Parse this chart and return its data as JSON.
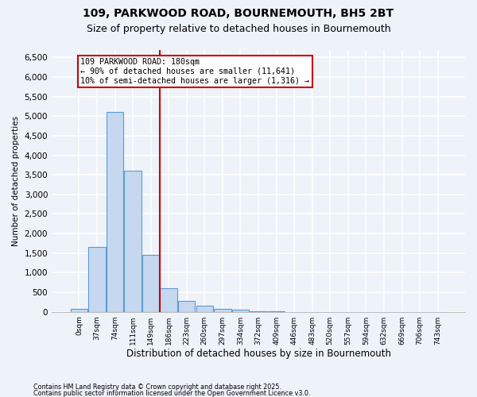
{
  "title1": "109, PARKWOOD ROAD, BOURNEMOUTH, BH5 2BT",
  "title2": "Size of property relative to detached houses in Bournemouth",
  "xlabel": "Distribution of detached houses by size in Bournemouth",
  "ylabel": "Number of detached properties",
  "footnote1": "Contains HM Land Registry data © Crown copyright and database right 2025.",
  "footnote2": "Contains public sector information licensed under the Open Government Licence v3.0.",
  "bar_labels": [
    "0sqm",
    "37sqm",
    "74sqm",
    "111sqm",
    "149sqm",
    "186sqm",
    "223sqm",
    "260sqm",
    "297sqm",
    "334sqm",
    "372sqm",
    "409sqm",
    "446sqm",
    "483sqm",
    "520sqm",
    "557sqm",
    "594sqm",
    "632sqm",
    "669sqm",
    "706sqm",
    "743sqm"
  ],
  "bar_values": [
    75,
    1650,
    5100,
    3600,
    1450,
    600,
    280,
    150,
    75,
    50,
    15,
    5,
    0,
    0,
    0,
    0,
    0,
    0,
    0,
    0,
    0
  ],
  "bar_color": "#c5d8f0",
  "bar_edge_color": "#5b9bd5",
  "vline_x_idx": 5,
  "vline_color": "#cc0000",
  "annotation_box_text": "109 PARKWOOD ROAD: 180sqm\n← 90% of detached houses are smaller (11,641)\n10% of semi-detached houses are larger (1,316) →",
  "ylim": [
    0,
    6700
  ],
  "yticks": [
    0,
    500,
    1000,
    1500,
    2000,
    2500,
    3000,
    3500,
    4000,
    4500,
    5000,
    5500,
    6000,
    6500
  ],
  "bg_color": "#eef2f9",
  "grid_color": "#ffffff",
  "title_fontsize": 10,
  "subtitle_fontsize": 9
}
